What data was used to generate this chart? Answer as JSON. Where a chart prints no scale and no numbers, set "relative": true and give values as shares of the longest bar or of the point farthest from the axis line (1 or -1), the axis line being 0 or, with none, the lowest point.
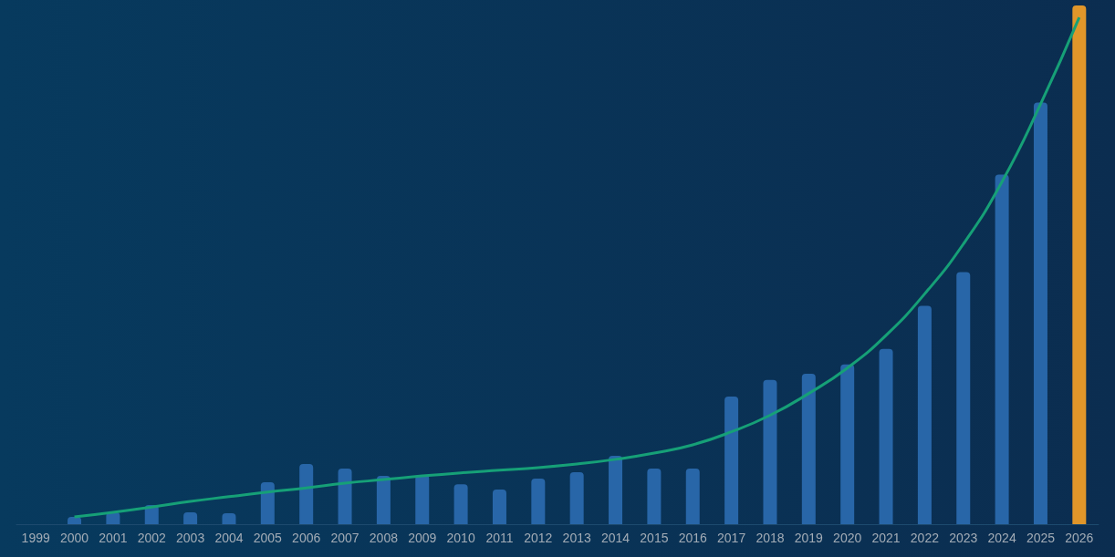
{
  "chart_data": {
    "type": "bar",
    "relative": true,
    "marker": "none",
    "categories": [
      "1999",
      "2000",
      "2001",
      "2002",
      "2003",
      "2004",
      "2005",
      "2006",
      "2007",
      "2008",
      "2009",
      "2010",
      "2011",
      "2012",
      "2013",
      "2014",
      "2015",
      "2016",
      "2017",
      "2018",
      "2019",
      "2020",
      "2021",
      "2022",
      "2023",
      "2024",
      "2025",
      "2026"
    ],
    "series": [
      {
        "colors": [
          "#2866a8",
          "#2866a8",
          "#2866a8",
          "#2866a8",
          "#2866a8",
          "#2866a8",
          "#2866a8",
          "#2866a8",
          "#2866a8",
          "#2866a8",
          "#2866a8",
          "#2866a8",
          "#2866a8",
          "#2866a8",
          "#2866a8",
          "#2866a8",
          "#2866a8",
          "#2866a8",
          "#2866a8",
          "#2866a8",
          "#2866a8",
          "#2866a8",
          "#2866a8",
          "#2866a8",
          "#2866a8",
          "#2866a8",
          "#2866a8",
          "#e0962a"
        ],
        "values": [
          null,
          0.014,
          0.023,
          0.037,
          0.023,
          0.021,
          0.081,
          0.116,
          0.107,
          0.093,
          0.095,
          0.077,
          0.067,
          0.088,
          0.1,
          0.132,
          0.107,
          0.107,
          0.246,
          0.278,
          0.29,
          0.308,
          0.338,
          0.421,
          0.486,
          0.674,
          0.813,
          1.0
        ]
      },
      {
        "type": "line",
        "color": "#16a077",
        "line_style": "solid",
        "values": [
          null,
          0.014,
          0.023,
          0.033,
          0.044,
          0.053,
          0.062,
          0.07,
          0.079,
          0.086,
          0.093,
          0.099,
          0.104,
          0.109,
          0.116,
          0.125,
          0.137,
          0.153,
          0.178,
          0.21,
          0.252,
          0.301,
          0.364,
          0.444,
          0.54,
          0.66,
          0.81,
          0.977
        ]
      }
    ]
  }
}
